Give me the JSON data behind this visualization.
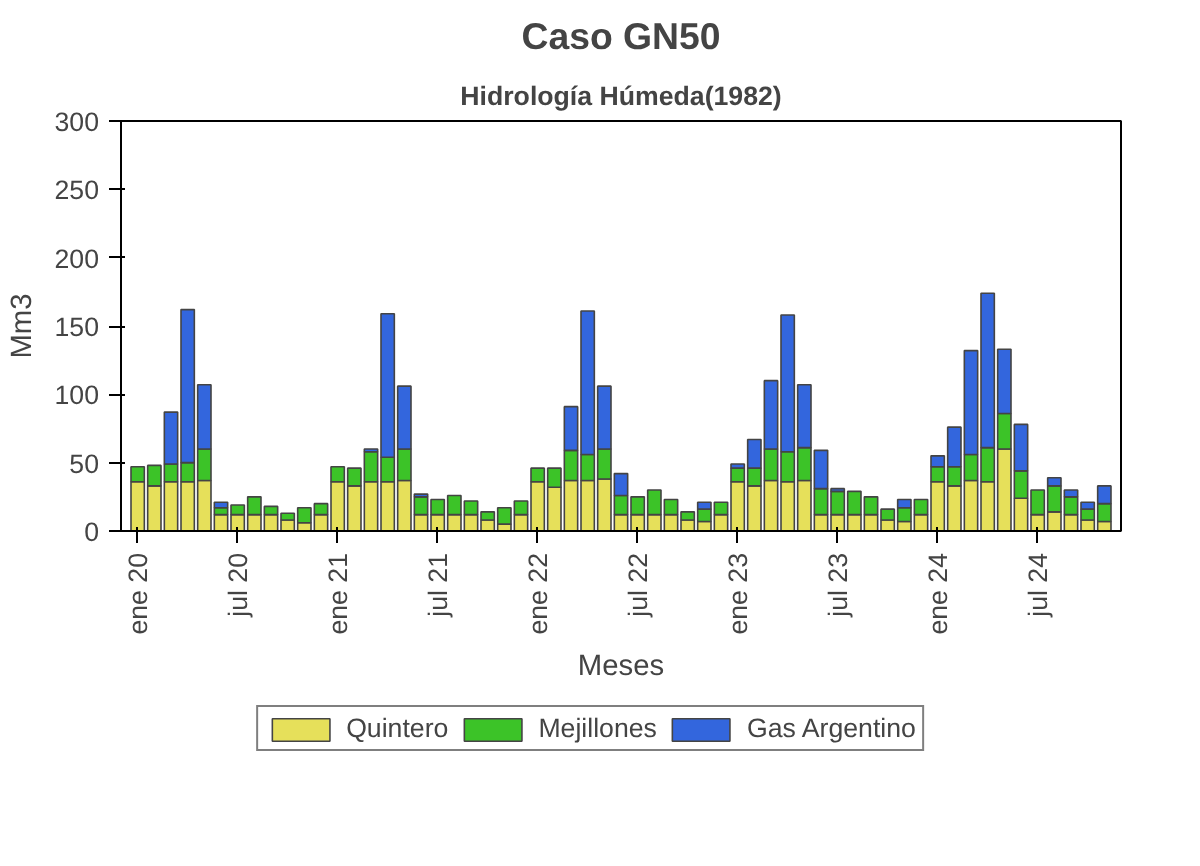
{
  "chart_data": {
    "type": "bar",
    "stacked": true,
    "title": "Caso GN50",
    "subtitle": "Hidrología Húmeda(1982)",
    "xlabel": "Meses",
    "ylabel": "Mm3",
    "categories": [
      "ene 20",
      null,
      null,
      null,
      null,
      null,
      "jul 20",
      null,
      null,
      null,
      null,
      null,
      "ene 21",
      null,
      null,
      null,
      null,
      null,
      "jul 21",
      null,
      null,
      null,
      null,
      null,
      "ene 22",
      null,
      null,
      null,
      null,
      null,
      "jul 22",
      null,
      null,
      null,
      null,
      null,
      "ene 23",
      null,
      null,
      null,
      null,
      null,
      "jul 23",
      null,
      null,
      null,
      null,
      null,
      "ene 24",
      null,
      null,
      null,
      null,
      null,
      "jul 24",
      null,
      null,
      null,
      null
    ],
    "series": [
      {
        "name": "Quintero",
        "color": "#e6e05a",
        "values": [
          36,
          33,
          36,
          36,
          37,
          12,
          12,
          12,
          12,
          8,
          6,
          12,
          36,
          33,
          36,
          36,
          37,
          12,
          12,
          12,
          12,
          8,
          5,
          12,
          36,
          32,
          37,
          37,
          38,
          12,
          12,
          12,
          12,
          8,
          7,
          12,
          36,
          33,
          37,
          36,
          37,
          12,
          12,
          12,
          12,
          8,
          7,
          12,
          36,
          33,
          37,
          36,
          60,
          24,
          12,
          14,
          12,
          8,
          7
        ]
      },
      {
        "name": "Mejillones",
        "color": "#3cc328",
        "values": [
          11,
          15,
          13,
          14,
          23,
          5,
          7,
          13,
          6,
          5,
          11,
          8,
          11,
          13,
          22,
          18,
          23,
          13,
          11,
          14,
          10,
          6,
          12,
          10,
          10,
          14,
          22,
          19,
          22,
          14,
          13,
          18,
          11,
          6,
          9,
          9,
          10,
          13,
          23,
          22,
          24,
          19,
          17,
          17,
          13,
          8,
          10,
          11,
          11,
          14,
          19,
          25,
          26,
          20,
          18,
          19,
          13,
          8,
          13
        ]
      },
      {
        "name": "Gas Argentino",
        "color": "#3366dd",
        "values": [
          0,
          0,
          38,
          112,
          47,
          4,
          0,
          0,
          0,
          0,
          0,
          0,
          0,
          0,
          2,
          105,
          46,
          2,
          0,
          0,
          0,
          0,
          0,
          0,
          0,
          0,
          32,
          105,
          46,
          16,
          0,
          0,
          0,
          0,
          5,
          0,
          3,
          21,
          50,
          100,
          46,
          28,
          2,
          0,
          0,
          0,
          6,
          0,
          8,
          29,
          76,
          113,
          47,
          34,
          0,
          6,
          5,
          5,
          13
        ]
      }
    ],
    "ylim": [
      0,
      300
    ],
    "yticks": [
      0,
      50,
      100,
      150,
      200,
      250,
      300
    ],
    "grid": false,
    "legend": "bottom"
  }
}
